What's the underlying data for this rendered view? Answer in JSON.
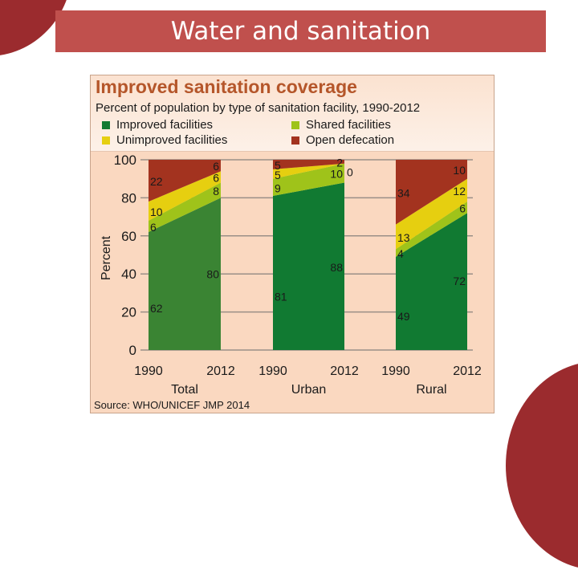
{
  "slide": {
    "title": "Water and sanitation",
    "accent_color": "#c0504d",
    "decor_color": "#9b2b2e"
  },
  "chart_data": {
    "type": "area",
    "title": "Improved sanitation coverage",
    "subtitle": "Percent of population by type of sanitation facility, 1990-2012",
    "ylabel": "Percent",
    "xlabel": "",
    "ylim": [
      0,
      100
    ],
    "yticks": [
      0,
      20,
      40,
      60,
      80,
      100
    ],
    "grid": true,
    "stacked": true,
    "legend_position": "top",
    "legend": [
      {
        "name": "Improved facilities",
        "color": "#117a32"
      },
      {
        "name": "Shared facilities",
        "color": "#9fc31a"
      },
      {
        "name": "Unimproved facilities",
        "color": "#e6cf10"
      },
      {
        "name": "Open defecation",
        "color": "#a3331f"
      }
    ],
    "groups": [
      {
        "name": "Total",
        "x": [
          "1990",
          "2012"
        ],
        "improved_color": "#3a8433",
        "series": [
          {
            "name": "Improved facilities",
            "values": [
              62,
              80
            ]
          },
          {
            "name": "Shared facilities",
            "values": [
              6,
              8
            ]
          },
          {
            "name": "Unimproved facilities",
            "values": [
              10,
              6
            ]
          },
          {
            "name": "Open defecation",
            "values": [
              22,
              6
            ]
          }
        ]
      },
      {
        "name": "Urban",
        "x": [
          "1990",
          "2012"
        ],
        "improved_color": "#117a32",
        "series": [
          {
            "name": "Improved facilities",
            "values": [
              81,
              88
            ]
          },
          {
            "name": "Shared facilities",
            "values": [
              9,
              10
            ]
          },
          {
            "name": "Unimproved facilities",
            "values": [
              5,
              0
            ]
          },
          {
            "name": "Open defecation",
            "values": [
              5,
              2
            ]
          }
        ]
      },
      {
        "name": "Rural",
        "x": [
          "1990",
          "2012"
        ],
        "improved_color": "#117a32",
        "series": [
          {
            "name": "Improved facilities",
            "values": [
              49,
              72
            ]
          },
          {
            "name": "Shared facilities",
            "values": [
              4,
              6
            ]
          },
          {
            "name": "Unimproved facilities",
            "values": [
              13,
              12
            ]
          },
          {
            "name": "Open defecation",
            "values": [
              34,
              10
            ]
          }
        ]
      }
    ],
    "source": "Source:  WHO/UNICEF JMP 2014"
  }
}
